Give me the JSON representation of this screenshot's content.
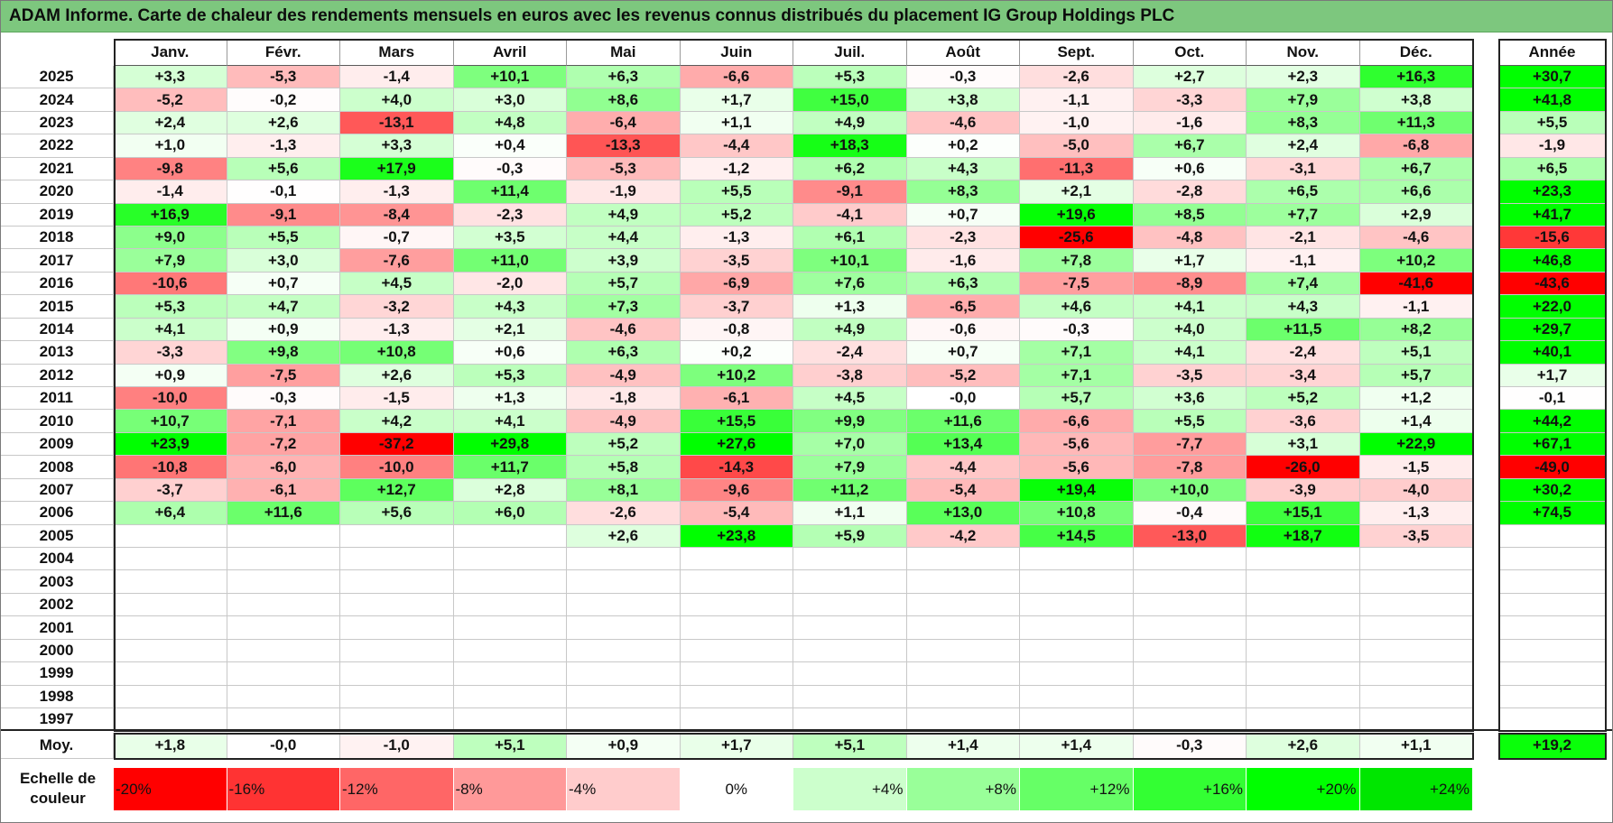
{
  "title": "ADAM Informe. Carte de chaleur des rendements mensuels en euros avec les revenus connus distribués du placement IG Group Holdings PLC",
  "chart_data": {
    "type": "heatmap",
    "title": "ADAM Informe. Carte de chaleur des rendements mensuels en euros avec les revenus connus distribués du placement IG Group Holdings PLC",
    "columns": [
      "Janv.",
      "Févr.",
      "Mars",
      "Avril",
      "Mai",
      "Juin",
      "Juil.",
      "Août",
      "Sept.",
      "Oct.",
      "Nov.",
      "Déc."
    ],
    "year_column_label": "Année",
    "avg_label": "Moy.",
    "rows": [
      {
        "year": "2025",
        "months": [
          "+3,3",
          "-5,3",
          "-1,4",
          "+10,1",
          "+6,3",
          "-6,6",
          "+5,3",
          "-0,3",
          "-2,6",
          "+2,7",
          "+2,3",
          "+16,3"
        ],
        "annual": "+30,7"
      },
      {
        "year": "2024",
        "months": [
          "-5,2",
          "-0,2",
          "+4,0",
          "+3,0",
          "+8,6",
          "+1,7",
          "+15,0",
          "+3,8",
          "-1,1",
          "-3,3",
          "+7,9",
          "+3,8"
        ],
        "annual": "+41,8"
      },
      {
        "year": "2023",
        "months": [
          "+2,4",
          "+2,6",
          "-13,1",
          "+4,8",
          "-6,4",
          "+1,1",
          "+4,9",
          "-4,6",
          "-1,0",
          "-1,6",
          "+8,3",
          "+11,3"
        ],
        "annual": "+5,5"
      },
      {
        "year": "2022",
        "months": [
          "+1,0",
          "-1,3",
          "+3,3",
          "+0,4",
          "-13,3",
          "-4,4",
          "+18,3",
          "+0,2",
          "-5,0",
          "+6,7",
          "+2,4",
          "-6,8"
        ],
        "annual": "-1,9"
      },
      {
        "year": "2021",
        "months": [
          "-9,8",
          "+5,6",
          "+17,9",
          "-0,3",
          "-5,3",
          "-1,2",
          "+6,2",
          "+4,3",
          "-11,3",
          "+0,6",
          "-3,1",
          "+6,7"
        ],
        "annual": "+6,5"
      },
      {
        "year": "2020",
        "months": [
          "-1,4",
          "-0,1",
          "-1,3",
          "+11,4",
          "-1,9",
          "+5,5",
          "-9,1",
          "+8,3",
          "+2,1",
          "-2,8",
          "+6,5",
          "+6,6"
        ],
        "annual": "+23,3"
      },
      {
        "year": "2019",
        "months": [
          "+16,9",
          "-9,1",
          "-8,4",
          "-2,3",
          "+4,9",
          "+5,2",
          "-4,1",
          "+0,7",
          "+19,6",
          "+8,5",
          "+7,7",
          "+2,9"
        ],
        "annual": "+41,7"
      },
      {
        "year": "2018",
        "months": [
          "+9,0",
          "+5,5",
          "-0,7",
          "+3,5",
          "+4,4",
          "-1,3",
          "+6,1",
          "-2,3",
          "-25,6",
          "-4,8",
          "-2,1",
          "-4,6"
        ],
        "annual": "-15,6"
      },
      {
        "year": "2017",
        "months": [
          "+7,9",
          "+3,0",
          "-7,6",
          "+11,0",
          "+3,9",
          "-3,5",
          "+10,1",
          "-1,6",
          "+7,8",
          "+1,7",
          "-1,1",
          "+10,2"
        ],
        "annual": "+46,8"
      },
      {
        "year": "2016",
        "months": [
          "-10,6",
          "+0,7",
          "+4,5",
          "-2,0",
          "+5,7",
          "-6,9",
          "+7,6",
          "+6,3",
          "-7,5",
          "-8,9",
          "+7,4",
          "-41,6"
        ],
        "annual": "-43,6"
      },
      {
        "year": "2015",
        "months": [
          "+5,3",
          "+4,7",
          "-3,2",
          "+4,3",
          "+7,3",
          "-3,7",
          "+1,3",
          "-6,5",
          "+4,6",
          "+4,1",
          "+4,3",
          "-1,1"
        ],
        "annual": "+22,0"
      },
      {
        "year": "2014",
        "months": [
          "+4,1",
          "+0,9",
          "-1,3",
          "+2,1",
          "-4,6",
          "-0,8",
          "+4,9",
          "-0,6",
          "-0,3",
          "+4,0",
          "+11,5",
          "+8,2"
        ],
        "annual": "+29,7"
      },
      {
        "year": "2013",
        "months": [
          "-3,3",
          "+9,8",
          "+10,8",
          "+0,6",
          "+6,3",
          "+0,2",
          "-2,4",
          "+0,7",
          "+7,1",
          "+4,1",
          "-2,4",
          "+5,1"
        ],
        "annual": "+40,1"
      },
      {
        "year": "2012",
        "months": [
          "+0,9",
          "-7,5",
          "+2,6",
          "+5,3",
          "-4,9",
          "+10,2",
          "-3,8",
          "-5,2",
          "+7,1",
          "-3,5",
          "-3,4",
          "+5,7"
        ],
        "annual": "+1,7"
      },
      {
        "year": "2011",
        "months": [
          "-10,0",
          "-0,3",
          "-1,5",
          "+1,3",
          "-1,8",
          "-6,1",
          "+4,5",
          "-0,0",
          "+5,7",
          "+3,6",
          "+5,2",
          "+1,2"
        ],
        "annual": "-0,1"
      },
      {
        "year": "2010",
        "months": [
          "+10,7",
          "-7,1",
          "+4,2",
          "+4,1",
          "-4,9",
          "+15,5",
          "+9,9",
          "+11,6",
          "-6,6",
          "+5,5",
          "-3,6",
          "+1,4"
        ],
        "annual": "+44,2"
      },
      {
        "year": "2009",
        "months": [
          "+23,9",
          "-7,2",
          "-37,2",
          "+29,8",
          "+5,2",
          "+27,6",
          "+7,0",
          "+13,4",
          "-5,6",
          "-7,7",
          "+3,1",
          "+22,9"
        ],
        "annual": "+67,1"
      },
      {
        "year": "2008",
        "months": [
          "-10,8",
          "-6,0",
          "-10,0",
          "+11,7",
          "+5,8",
          "-14,3",
          "+7,9",
          "-4,4",
          "-5,6",
          "-7,8",
          "-26,0",
          "-1,5"
        ],
        "annual": "-49,0"
      },
      {
        "year": "2007",
        "months": [
          "-3,7",
          "-6,1",
          "+12,7",
          "+2,8",
          "+8,1",
          "-9,6",
          "+11,2",
          "-5,4",
          "+19,4",
          "+10,0",
          "-3,9",
          "-4,0"
        ],
        "annual": "+30,2"
      },
      {
        "year": "2006",
        "months": [
          "+6,4",
          "+11,6",
          "+5,6",
          "+6,0",
          "-2,6",
          "-5,4",
          "+1,1",
          "+13,0",
          "+10,8",
          "-0,4",
          "+15,1",
          "-1,3"
        ],
        "annual": "+74,5"
      },
      {
        "year": "2005",
        "months": [
          "",
          "",
          "",
          "",
          "+2,6",
          "+23,8",
          "+5,9",
          "-4,2",
          "+14,5",
          "-13,0",
          "+18,7",
          "-3,5"
        ],
        "annual": ""
      },
      {
        "year": "2004",
        "months": [
          "",
          "",
          "",
          "",
          "",
          "",
          "",
          "",
          "",
          "",
          "",
          ""
        ],
        "annual": ""
      },
      {
        "year": "2003",
        "months": [
          "",
          "",
          "",
          "",
          "",
          "",
          "",
          "",
          "",
          "",
          "",
          ""
        ],
        "annual": ""
      },
      {
        "year": "2002",
        "months": [
          "",
          "",
          "",
          "",
          "",
          "",
          "",
          "",
          "",
          "",
          "",
          ""
        ],
        "annual": ""
      },
      {
        "year": "2001",
        "months": [
          "",
          "",
          "",
          "",
          "",
          "",
          "",
          "",
          "",
          "",
          "",
          ""
        ],
        "annual": ""
      },
      {
        "year": "2000",
        "months": [
          "",
          "",
          "",
          "",
          "",
          "",
          "",
          "",
          "",
          "",
          "",
          ""
        ],
        "annual": ""
      },
      {
        "year": "1999",
        "months": [
          "",
          "",
          "",
          "",
          "",
          "",
          "",
          "",
          "",
          "",
          "",
          ""
        ],
        "annual": ""
      },
      {
        "year": "1998",
        "months": [
          "",
          "",
          "",
          "",
          "",
          "",
          "",
          "",
          "",
          "",
          "",
          ""
        ],
        "annual": ""
      },
      {
        "year": "1997",
        "months": [
          "",
          "",
          "",
          "",
          "",
          "",
          "",
          "",
          "",
          "",
          "",
          ""
        ],
        "annual": ""
      }
    ],
    "average": {
      "months": [
        "+1,8",
        "-0,0",
        "-1,0",
        "+5,1",
        "+0,9",
        "+1,7",
        "+5,1",
        "+1,4",
        "+1,4",
        "-0,3",
        "+2,6",
        "+1,1"
      ],
      "annual": "+19,2"
    },
    "color_scale": {
      "label": "Echelle de couleur",
      "stops": [
        {
          "label": "-20%",
          "value": -20,
          "color": "#ff0000"
        },
        {
          "label": "-16%",
          "value": -16,
          "color": "#ff3333"
        },
        {
          "label": "-12%",
          "value": -12,
          "color": "#ff6666"
        },
        {
          "label": "-8%",
          "value": -8,
          "color": "#ff9999"
        },
        {
          "label": "-4%",
          "value": -4,
          "color": "#ffcccc"
        },
        {
          "label": "0%",
          "value": 0,
          "color": "#ffffff"
        },
        {
          "label": "+4%",
          "value": 4,
          "color": "#ccffcc"
        },
        {
          "label": "+8%",
          "value": 8,
          "color": "#99ff99"
        },
        {
          "label": "+12%",
          "value": 12,
          "color": "#66ff66"
        },
        {
          "label": "+16%",
          "value": 16,
          "color": "#33ff33"
        },
        {
          "label": "+20%",
          "value": 20,
          "color": "#00ff00"
        },
        {
          "label": "+24%",
          "value": 24,
          "color": "#00e600"
        }
      ]
    }
  }
}
